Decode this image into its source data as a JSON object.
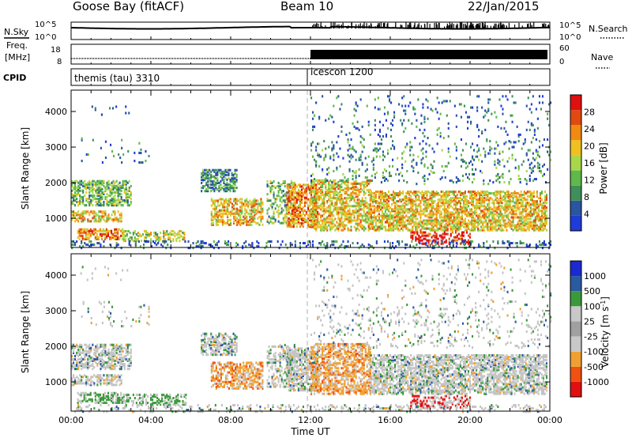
{
  "header": {
    "station": "Goose Bay (fitACF)",
    "beam": "Beam 10",
    "date": "22/Jan/2015"
  },
  "top_panels": {
    "nsky_label": "N.Sky",
    "nsky_tick_hi": "10^5",
    "nsky_tick_lo": "10^0",
    "nsearch_label": "N.Search",
    "nsearch_tick_hi": "10^5",
    "nsearch_tick_lo": "10^0",
    "freq_label_1": "Freq.",
    "freq_label_2": "[MHz]",
    "freq_tick_hi": "18",
    "freq_tick_lo": "8",
    "nave_label": "Nave",
    "nave_tick_hi": "60",
    "nave_tick_lo": "0",
    "cpid_label": "CPID",
    "cpid_left": "themis (tau) 3310",
    "cpid_right": "icescon 1200"
  },
  "colors": {
    "power": [
      "#1f3bd8",
      "#2a55a0",
      "#3f8f5a",
      "#5fb84a",
      "#a8d84a",
      "#f0c020",
      "#f08a10",
      "#e04a10",
      "#e01010"
    ],
    "velocity": [
      "#e01010",
      "#f05010",
      "#f0a030",
      "#c8c8c8",
      "#a0a0a0",
      "#c8c8c8",
      "#3a9a3a",
      "#2a5aa0",
      "#1a2ad0"
    ],
    "velocity_grey": "#c4c4c4"
  },
  "chart_data": [
    {
      "type": "heatmap",
      "title": "",
      "xlabel": "Time UT",
      "ylabel": "Slant Range [km]",
      "colorbar_label": "Power [dB]",
      "x_ticks": [
        "00:00",
        "04:00",
        "08:00",
        "12:00",
        "16:00",
        "20:00",
        "00:00"
      ],
      "xlim_hours": [
        0,
        24
      ],
      "ylim_km": [
        180,
        4600
      ],
      "y_ticks": [
        1000,
        2000,
        3000,
        4000
      ],
      "colorbar_ticks": [
        "4",
        "8",
        "12",
        "16",
        "20",
        "24",
        "28"
      ],
      "colorbar_range": [
        0,
        32
      ]
    },
    {
      "type": "heatmap",
      "title": "",
      "xlabel": "Time UT",
      "ylabel": "Slant Range [km]",
      "colorbar_label": "Velocity [m s^-1]",
      "x_ticks": [
        "00:00",
        "04:00",
        "08:00",
        "12:00",
        "16:00",
        "20:00",
        "00:00"
      ],
      "xlim_hours": [
        0,
        24
      ],
      "ylim_km": [
        180,
        4600
      ],
      "y_ticks": [
        1000,
        2000,
        3000,
        4000
      ],
      "colorbar_ticks": [
        "1000",
        "500",
        "100",
        "25",
        "-25",
        "-100",
        "-500",
        "-1000"
      ]
    }
  ]
}
